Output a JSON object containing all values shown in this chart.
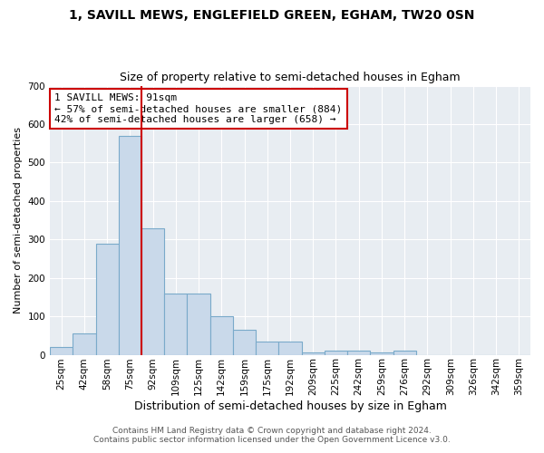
{
  "title": "1, SAVILL MEWS, ENGLEFIELD GREEN, EGHAM, TW20 0SN",
  "subtitle": "Size of property relative to semi-detached houses in Egham",
  "xlabel": "Distribution of semi-detached houses by size in Egham",
  "ylabel": "Number of semi-detached properties",
  "categories": [
    "25sqm",
    "42sqm",
    "58sqm",
    "75sqm",
    "92sqm",
    "109sqm",
    "125sqm",
    "142sqm",
    "159sqm",
    "175sqm",
    "192sqm",
    "209sqm",
    "225sqm",
    "242sqm",
    "259sqm",
    "276sqm",
    "292sqm",
    "309sqm",
    "326sqm",
    "342sqm",
    "359sqm"
  ],
  "values": [
    20,
    55,
    290,
    570,
    330,
    160,
    160,
    100,
    65,
    35,
    35,
    5,
    10,
    10,
    5,
    10,
    0,
    0,
    0,
    0,
    0
  ],
  "bar_color": "#c9d9ea",
  "bar_edge_color": "#7aaaca",
  "marker_line_color": "#cc0000",
  "annotation_box_edge": "#cc0000",
  "annotation_box_color": "#ffffff",
  "marker_label": "1 SAVILL MEWS: 91sqm",
  "annotation_line1": "← 57% of semi-detached houses are smaller (884)",
  "annotation_line2": "42% of semi-detached houses are larger (658) →",
  "ylim": [
    0,
    700
  ],
  "yticks": [
    0,
    100,
    200,
    300,
    400,
    500,
    600,
    700
  ],
  "background_color": "#e8edf2",
  "grid_color": "#ffffff",
  "footer1": "Contains HM Land Registry data © Crown copyright and database right 2024.",
  "footer2": "Contains public sector information licensed under the Open Government Licence v3.0.",
  "title_fontsize": 10,
  "subtitle_fontsize": 9,
  "xlabel_fontsize": 9,
  "ylabel_fontsize": 8,
  "tick_fontsize": 7.5,
  "annotation_fontsize": 8,
  "footer_fontsize": 6.5
}
